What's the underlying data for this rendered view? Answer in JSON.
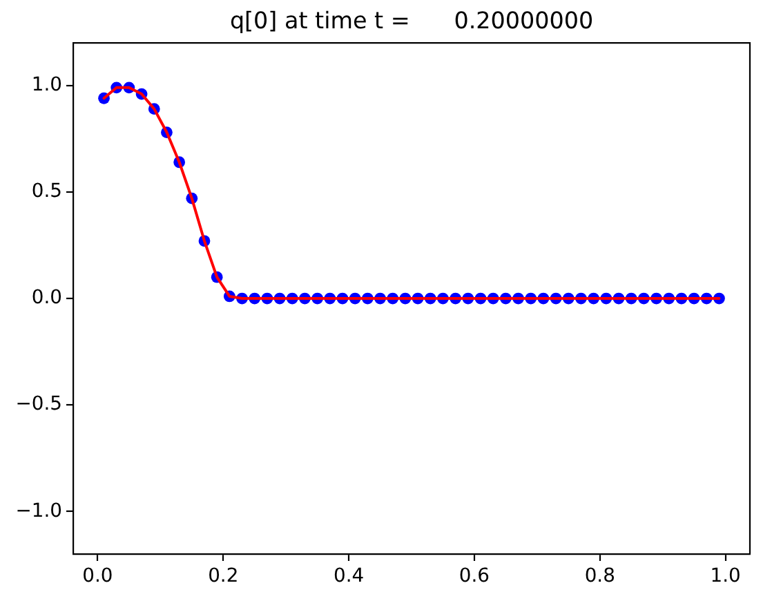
{
  "chart_data": {
    "type": "scatter",
    "title": "q[0] at time t =      0.20000000",
    "x": [
      0.01,
      0.03,
      0.05,
      0.07,
      0.09,
      0.11,
      0.13,
      0.15,
      0.17,
      0.19,
      0.21,
      0.23,
      0.25,
      0.27,
      0.29,
      0.31,
      0.33,
      0.35,
      0.37,
      0.39,
      0.41,
      0.43,
      0.45,
      0.47,
      0.49,
      0.51,
      0.53,
      0.55,
      0.57,
      0.59,
      0.61,
      0.63,
      0.65,
      0.67,
      0.69,
      0.71,
      0.73,
      0.75,
      0.77,
      0.79,
      0.81,
      0.83,
      0.85,
      0.87,
      0.89,
      0.91,
      0.93,
      0.95,
      0.97,
      0.99
    ],
    "series": [
      {
        "color": "#0000ff",
        "marker": "circle",
        "values": [
          0.94,
          0.99,
          0.99,
          0.96,
          0.89,
          0.78,
          0.64,
          0.47,
          0.27,
          0.1,
          0.01,
          0,
          0,
          0,
          0,
          0,
          0,
          0,
          0,
          0,
          0,
          0,
          0,
          0,
          0,
          0,
          0,
          0,
          0,
          0,
          0,
          0,
          0,
          0,
          0,
          0,
          0,
          0,
          0,
          0,
          0,
          0,
          0,
          0,
          0,
          0,
          0,
          0,
          0,
          0
        ]
      },
      {
        "type": "line",
        "color": "#ff0000",
        "marker": "none",
        "line_style": "solid",
        "values": [
          0.94,
          0.99,
          0.99,
          0.96,
          0.89,
          0.78,
          0.64,
          0.47,
          0.27,
          0.1,
          0.01,
          0,
          0,
          0,
          0,
          0,
          0,
          0,
          0,
          0,
          0,
          0,
          0,
          0,
          0,
          0,
          0,
          0,
          0,
          0,
          0,
          0,
          0,
          0,
          0,
          0,
          0,
          0,
          0,
          0,
          0,
          0,
          0,
          0,
          0,
          0,
          0,
          0,
          0,
          0
        ]
      }
    ],
    "xlim": [
      -0.039,
      1.039
    ],
    "ylim": [
      -1.2,
      1.2
    ],
    "xticks": [
      {
        "value": 0,
        "label": "0.0"
      },
      0.2,
      0.4,
      0.6,
      0.8,
      {
        "value": 1,
        "label": "1.0"
      }
    ],
    "yticks": [
      {
        "value": -1,
        "label": "−1.0"
      },
      {
        "value": -0.5,
        "label": "−0.5"
      },
      {
        "value": 0,
        "label": "0.0"
      },
      0.5,
      {
        "value": 1,
        "label": "1.0"
      }
    ],
    "grid": false,
    "legend": false
  }
}
